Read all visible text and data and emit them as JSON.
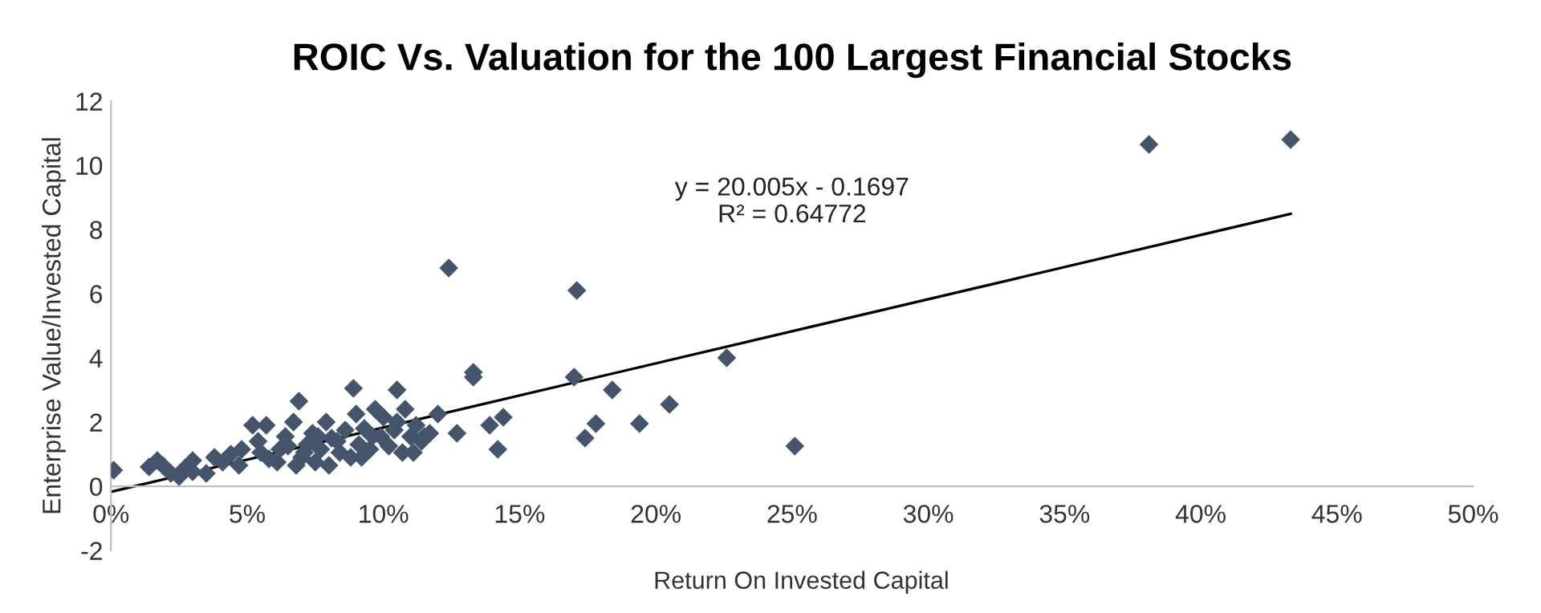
{
  "chart_data": {
    "type": "scatter",
    "title": "ROIC Vs. Valuation for the 100 Largest Financial Stocks",
    "xlabel": "Return On Invested Capital",
    "ylabel": "Enterprise Value/Invested Capital",
    "annotations": [
      "y = 20.005x - 0.1697",
      "R² = 0.64772"
    ],
    "xlim": [
      0,
      50
    ],
    "ylim": [
      -2,
      12
    ],
    "xticks": [
      {
        "value": 0,
        "label": "0%"
      },
      {
        "value": 5,
        "label": "5%"
      },
      {
        "value": 10,
        "label": "10%"
      },
      {
        "value": 15,
        "label": "15%"
      },
      {
        "value": 20,
        "label": "20%"
      },
      {
        "value": 25,
        "label": "25%"
      },
      {
        "value": 30,
        "label": "30%"
      },
      {
        "value": 35,
        "label": "35%"
      },
      {
        "value": 40,
        "label": "40%"
      },
      {
        "value": 45,
        "label": "45%"
      },
      {
        "value": 50,
        "label": "50%"
      }
    ],
    "yticks": [
      -2,
      0,
      2,
      4,
      6,
      8,
      10,
      12
    ],
    "grid": false,
    "legend": false,
    "series": [
      {
        "color": "#44546a",
        "marker": "diamond",
        "x": [
          0.1,
          1.4,
          1.7,
          1.9,
          2.2,
          2.5,
          2.7,
          3.0,
          3.0,
          4.1,
          4.4,
          4.7,
          4.8,
          5.2,
          5.4,
          5.7,
          6.1,
          6.2,
          6.4,
          6.7,
          6.9,
          7.0,
          7.2,
          7.4,
          7.5,
          7.7,
          7.9,
          8.1,
          8.4,
          8.6,
          8.9,
          9.0,
          9.1,
          9.3,
          9.5,
          9.7,
          9.9,
          10.2,
          10.5,
          10.5,
          10.8,
          11.0,
          11.2,
          11.5,
          12.0,
          12.7,
          13.3,
          12.4,
          13.9,
          14.2,
          14.4,
          6.5,
          6.8,
          7.1,
          7.6,
          8.0,
          8.3,
          8.8,
          9.2,
          9.6,
          10.0,
          10.4,
          10.7,
          11.1,
          11.4,
          11.7,
          3.5,
          3.8,
          5.5,
          5.8,
          17.1,
          17.0,
          18.4,
          17.4,
          17.8,
          19.4,
          20.5,
          22.6,
          25.1,
          38.1,
          43.3,
          13.3
        ],
        "values": [
          0.5,
          0.6,
          0.8,
          0.65,
          0.4,
          0.3,
          0.55,
          0.8,
          0.45,
          0.75,
          1.0,
          0.65,
          1.15,
          1.9,
          1.4,
          1.9,
          0.75,
          1.15,
          1.55,
          2.0,
          2.65,
          0.9,
          1.3,
          1.65,
          0.75,
          1.15,
          2.0,
          1.5,
          1.05,
          1.75,
          3.05,
          2.25,
          1.3,
          1.8,
          1.15,
          2.4,
          1.55,
          1.25,
          3.0,
          2.0,
          2.4,
          1.55,
          1.9,
          1.55,
          2.25,
          1.65,
          3.55,
          6.8,
          1.9,
          1.15,
          2.15,
          1.25,
          0.65,
          1.05,
          1.55,
          0.65,
          1.4,
          0.9,
          0.9,
          1.55,
          2.15,
          1.75,
          1.05,
          1.05,
          1.4,
          1.65,
          0.4,
          0.9,
          1.05,
          0.85,
          6.1,
          3.4,
          3.0,
          1.5,
          1.95,
          1.95,
          2.55,
          4.0,
          1.25,
          10.65,
          10.8,
          3.4
        ]
      },
      {
        "type": "line",
        "color": "#000000",
        "line_style": "solid",
        "x": [
          0,
          43.3
        ],
        "values": [
          -0.17,
          8.49
        ]
      }
    ]
  }
}
